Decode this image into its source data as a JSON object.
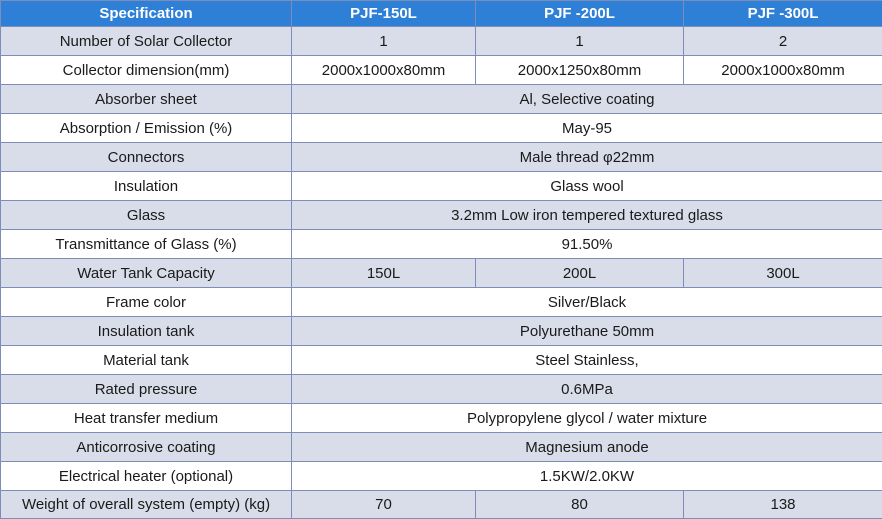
{
  "header": {
    "specification": "Specification",
    "models": [
      "PJF-150L",
      "PJF -200L",
      "PJF -300L"
    ]
  },
  "rows": [
    {
      "label": "Number of Solar Collector",
      "values": [
        "1",
        "1",
        "2"
      ]
    },
    {
      "label": "Collector dimension(mm)",
      "values": [
        "2000x1000x80mm",
        "2000x1250x80mm",
        "2000x1000x80mm"
      ]
    },
    {
      "label": "Absorber sheet",
      "value": "Al, Selective coating"
    },
    {
      "label": "Absorption / Emission (%)",
      "value": "May-95"
    },
    {
      "label": "Connectors",
      "value": "Male thread φ22mm"
    },
    {
      "label": "Insulation",
      "value": "Glass wool"
    },
    {
      "label": "Glass",
      "value": "3.2mm Low iron tempered textured glass"
    },
    {
      "label": "Transmittance of Glass (%)",
      "value": "91.50%"
    },
    {
      "label": "Water Tank Capacity",
      "values": [
        "150L",
        "200L",
        "300L"
      ]
    },
    {
      "label": "Frame color",
      "value": "Silver/Black"
    },
    {
      "label": "Insulation tank",
      "value": "Polyurethane 50mm"
    },
    {
      "label": "Material tank",
      "value": "Steel Stainless,"
    },
    {
      "label": "Rated pressure",
      "value": "0.6MPa"
    },
    {
      "label": "Heat transfer medium",
      "value": "Polypropylene glycol / water mixture"
    },
    {
      "label": "Anticorrosive coating",
      "value": "Magnesium anode"
    },
    {
      "label": "Electrical heater (optional)",
      "value": "1.5KW/2.0KW"
    },
    {
      "label": "Weight of overall system (empty) (kg)",
      "values": [
        "70",
        "80",
        "138"
      ]
    }
  ],
  "colors": {
    "header_bg": "#2e7fd6",
    "header_text": "#ffffff",
    "row_shaded": "#d9dde9",
    "row_plain": "#ffffff",
    "border": "#7d8db8"
  }
}
